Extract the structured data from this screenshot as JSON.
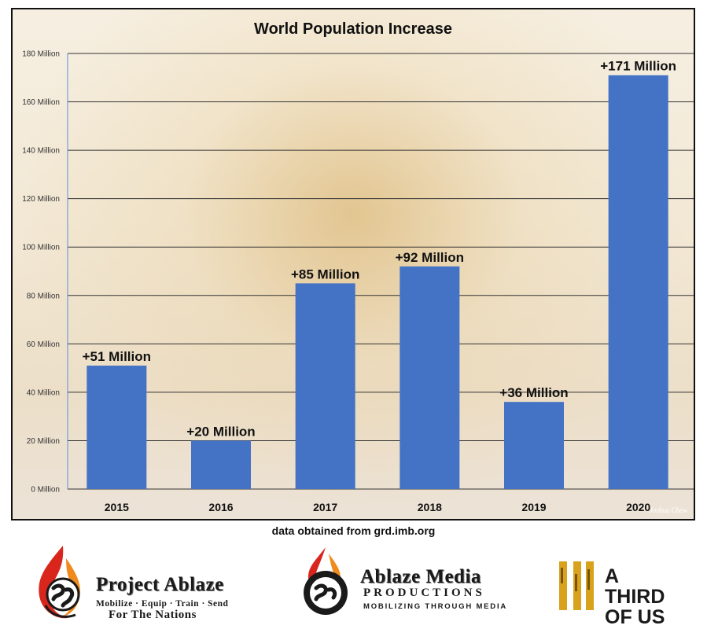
{
  "chart_data": {
    "type": "bar",
    "title": "World Population Increase",
    "categories": [
      "2015",
      "2016",
      "2017",
      "2018",
      "2019",
      "2020"
    ],
    "values": [
      51,
      20,
      85,
      92,
      36,
      171
    ],
    "data_labels": [
      "+51 Million",
      "+20 Million",
      "+85 Million",
      "+92 Million",
      "+36 Million",
      "+171 Million"
    ],
    "yticks": [
      0,
      20,
      40,
      60,
      80,
      100,
      120,
      140,
      160,
      180
    ],
    "ytick_labels": [
      "0 Million",
      "20 Million",
      "40 Million",
      "60 Million",
      "80 Million",
      "100 Million",
      "120 Million",
      "140 Million",
      "160 Million",
      "180 Million"
    ],
    "ylim": [
      0,
      180
    ],
    "grid": true,
    "bar_color": "#4472c4",
    "grid_color": "#333333"
  },
  "source_note": "data obtained from grd.imb.org",
  "photo_credit": "Joshua Chew",
  "logos": {
    "project_ablaze": {
      "title": "Project Ablaze",
      "tagline": "Mobilize · Equip · Train · Send",
      "tagline2": "For The Nations"
    },
    "ablaze_media": {
      "title": "Ablaze Media",
      "subtitle": "PRODUCTIONS",
      "tagline": "MOBILIZING THROUGH MEDIA"
    },
    "athird": {
      "line1": "A THIRD",
      "line2": "OF US"
    }
  }
}
